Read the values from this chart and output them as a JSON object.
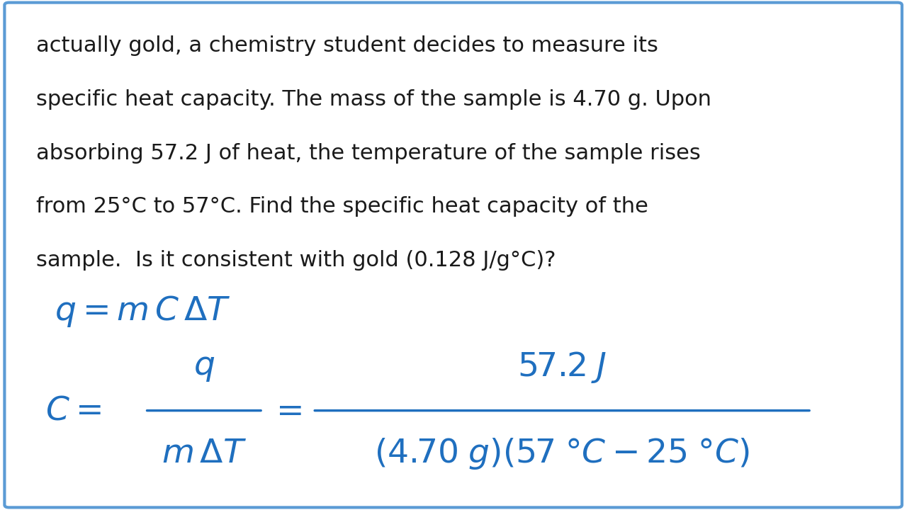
{
  "background_color": "#ffffff",
  "border_color": "#5b9bd5",
  "border_linewidth": 3,
  "text_color_black": "#1a1a1a",
  "text_color_blue": "#1f6fbf",
  "paragraph_text": "actually gold, a chemistry student decides to measure its\nspecific heat capacity. The mass of the sample is 4.70 g. Upon\nabsorbing 57.2 J of heat, the temperature of the sample rises\nfrom 25°C to 57°C. Find the specific heat capacity of the\nsample.  Is it consistent with gold (0.128 J/g°C)?",
  "formula_eq1": "$q = m\\,C\\,\\Delta T$",
  "formula_eq2_left_top": "$q$",
  "formula_eq2_left_bot": "$m\\,\\Delta T$",
  "formula_eq2_right_top": "$57.2\\,J$",
  "formula_eq2_right_bot": "$(4.70\\;g)(57\\;\\degree C - 25\\;\\degree C)$",
  "fig_width": 12.8,
  "fig_height": 7.2,
  "dpi": 100
}
